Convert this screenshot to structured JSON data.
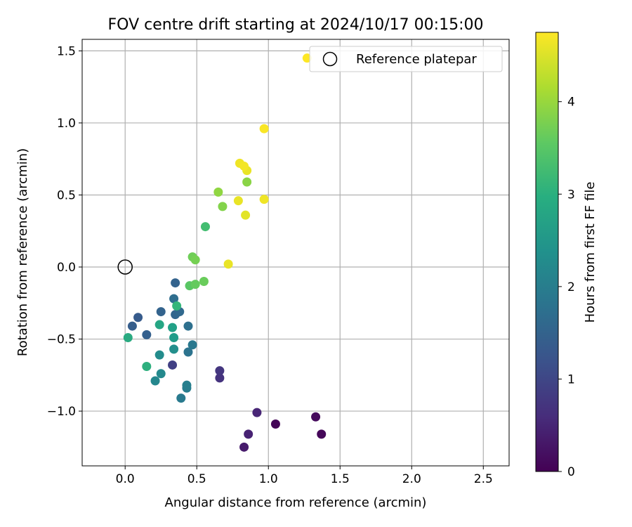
{
  "chart_data": {
    "type": "scatter",
    "title": "FOV centre drift starting at 2024/10/17 00:15:00",
    "xlabel": "Angular distance from reference (arcmin)",
    "ylabel": "Rotation from reference (arcmin)",
    "xlim": [
      -0.3,
      2.68
    ],
    "ylim": [
      -1.38,
      1.58
    ],
    "xticks": [
      0.0,
      0.5,
      1.0,
      1.5,
      2.0,
      2.5
    ],
    "xtick_labels": [
      "0.0",
      "0.5",
      "1.0",
      "1.5",
      "2.0",
      "2.5"
    ],
    "yticks": [
      -1.0,
      -0.5,
      0.0,
      0.5,
      1.0,
      1.5
    ],
    "ytick_labels": [
      "−1.0",
      "−0.5",
      "0.0",
      "0.5",
      "1.0",
      "1.5"
    ],
    "grid": true,
    "legend": {
      "position": "top-right",
      "entries": [
        "Reference platepar"
      ]
    },
    "reference_point": {
      "x": 0.0,
      "y": 0.0
    },
    "colorbar": {
      "label": "Hours from first FF file",
      "colormap": "viridis",
      "range": [
        0,
        4.75
      ],
      "ticks": [
        0,
        1,
        2,
        3,
        4
      ],
      "tick_labels": [
        "0",
        "1",
        "2",
        "3",
        "4"
      ]
    },
    "points": [
      {
        "x": 1.05,
        "y": -1.09,
        "t": 0.05
      },
      {
        "x": 1.37,
        "y": -1.16,
        "t": 0.08
      },
      {
        "x": 1.33,
        "y": -1.04,
        "t": 0.12
      },
      {
        "x": 0.83,
        "y": -1.25,
        "t": 0.35
      },
      {
        "x": 0.86,
        "y": -1.16,
        "t": 0.45
      },
      {
        "x": 0.92,
        "y": -1.01,
        "t": 0.5
      },
      {
        "x": 0.66,
        "y": -0.77,
        "t": 0.7
      },
      {
        "x": 0.66,
        "y": -0.72,
        "t": 0.75
      },
      {
        "x": 0.33,
        "y": -0.68,
        "t": 0.9
      },
      {
        "x": 0.35,
        "y": -0.11,
        "t": 1.5
      },
      {
        "x": 0.09,
        "y": -0.35,
        "t": 1.35
      },
      {
        "x": 0.05,
        "y": -0.41,
        "t": 1.4
      },
      {
        "x": 0.15,
        "y": -0.47,
        "t": 1.45
      },
      {
        "x": 0.25,
        "y": -0.31,
        "t": 1.5
      },
      {
        "x": 0.35,
        "y": -0.33,
        "t": 1.55
      },
      {
        "x": 0.38,
        "y": -0.31,
        "t": 1.6
      },
      {
        "x": 0.34,
        "y": -0.22,
        "t": 1.7
      },
      {
        "x": 0.44,
        "y": -0.41,
        "t": 1.75
      },
      {
        "x": 0.44,
        "y": -0.59,
        "t": 1.8
      },
      {
        "x": 0.47,
        "y": -0.54,
        "t": 1.9
      },
      {
        "x": 0.39,
        "y": -0.91,
        "t": 1.95
      },
      {
        "x": 0.43,
        "y": -0.84,
        "t": 2.0
      },
      {
        "x": 0.43,
        "y": -0.82,
        "t": 2.05
      },
      {
        "x": 0.21,
        "y": -0.79,
        "t": 2.2
      },
      {
        "x": 0.25,
        "y": -0.74,
        "t": 2.25
      },
      {
        "x": 0.24,
        "y": -0.61,
        "t": 2.3
      },
      {
        "x": 0.34,
        "y": -0.57,
        "t": 2.35
      },
      {
        "x": 0.34,
        "y": -0.49,
        "t": 2.6
      },
      {
        "x": 0.33,
        "y": -0.42,
        "t": 2.7
      },
      {
        "x": 0.24,
        "y": -0.4,
        "t": 2.8
      },
      {
        "x": 0.02,
        "y": -0.49,
        "t": 2.9
      },
      {
        "x": 0.15,
        "y": -0.69,
        "t": 3.0
      },
      {
        "x": 0.36,
        "y": -0.27,
        "t": 3.15
      },
      {
        "x": 0.56,
        "y": 0.28,
        "t": 3.3
      },
      {
        "x": 0.45,
        "y": -0.13,
        "t": 3.5
      },
      {
        "x": 0.49,
        "y": -0.12,
        "t": 3.6
      },
      {
        "x": 0.55,
        "y": -0.1,
        "t": 3.65
      },
      {
        "x": 0.47,
        "y": 0.07,
        "t": 3.7
      },
      {
        "x": 0.49,
        "y": 0.05,
        "t": 3.75
      },
      {
        "x": 0.68,
        "y": 0.42,
        "t": 3.85
      },
      {
        "x": 0.65,
        "y": 0.52,
        "t": 3.95
      },
      {
        "x": 0.85,
        "y": 0.59,
        "t": 3.9
      },
      {
        "x": 0.72,
        "y": 0.02,
        "t": 4.6
      },
      {
        "x": 0.84,
        "y": 0.36,
        "t": 4.55
      },
      {
        "x": 0.79,
        "y": 0.46,
        "t": 4.6
      },
      {
        "x": 0.97,
        "y": 0.47,
        "t": 4.65
      },
      {
        "x": 0.85,
        "y": 0.67,
        "t": 4.6
      },
      {
        "x": 0.8,
        "y": 0.72,
        "t": 4.65
      },
      {
        "x": 0.83,
        "y": 0.7,
        "t": 4.68
      },
      {
        "x": 0.97,
        "y": 0.96,
        "t": 4.72
      },
      {
        "x": 1.27,
        "y": 1.45,
        "t": 4.75
      }
    ]
  }
}
